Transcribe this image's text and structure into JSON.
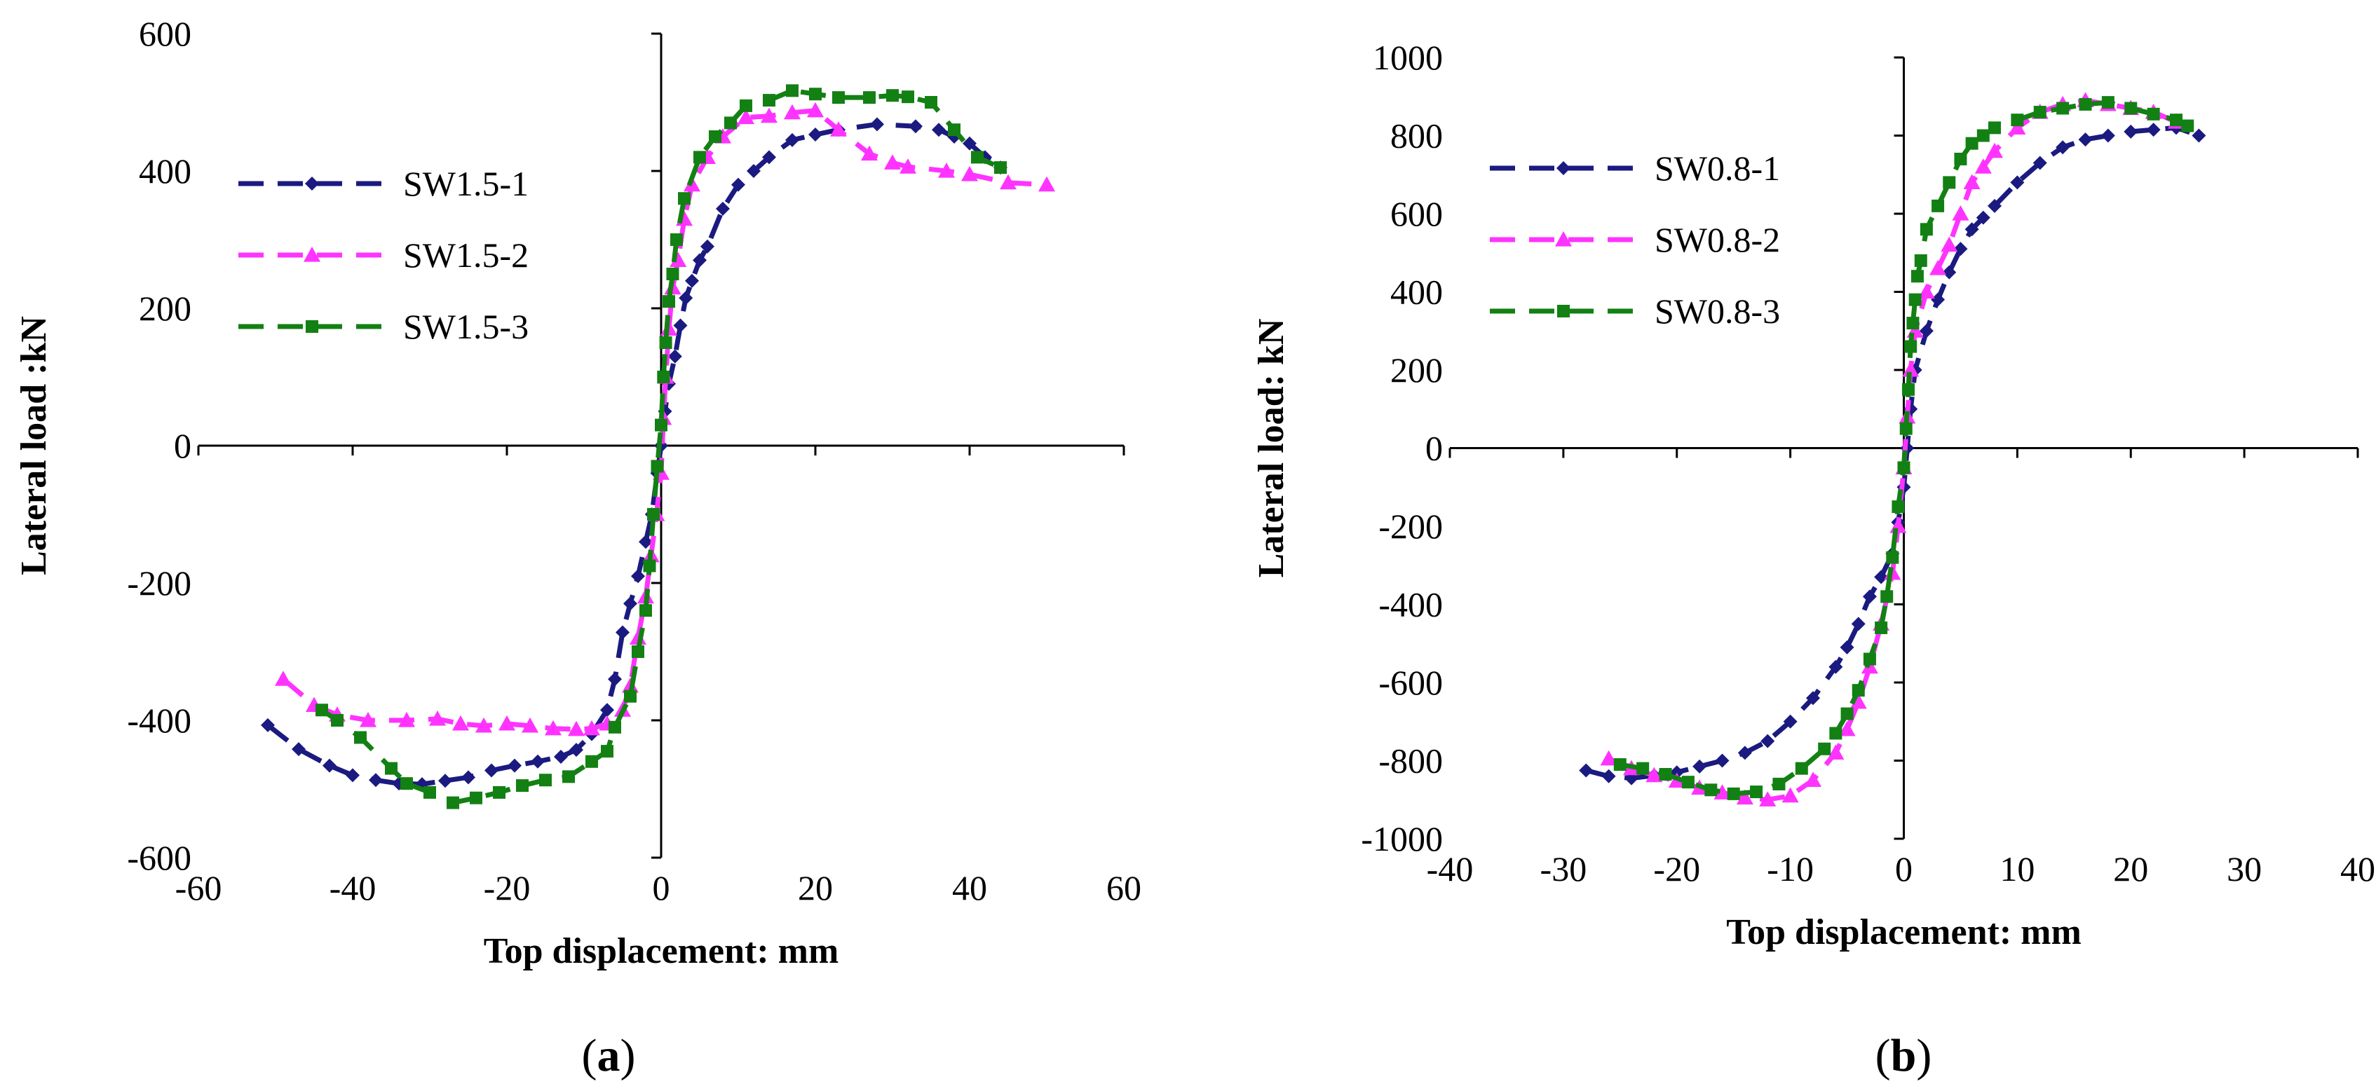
{
  "chart_data": [
    {
      "type": "line",
      "panel_label": "a",
      "xlabel": "Top displacement: mm",
      "ylabel": "Lateral load :kN",
      "xlim": [
        -60,
        60
      ],
      "ylim": [
        -600,
        600
      ],
      "xticks": [
        -60,
        -40,
        -20,
        0,
        20,
        40,
        60
      ],
      "yticks": [
        -600,
        -400,
        -200,
        0,
        200,
        400,
        600
      ],
      "grid": false,
      "legend_position": "left",
      "series": [
        {
          "name": "SW1.5-1",
          "color": "#1a1a80",
          "marker": "diamond",
          "points": [
            [
              -51,
              -407
            ],
            [
              -47,
              -442
            ],
            [
              -43,
              -466
            ],
            [
              -40,
              -480
            ],
            [
              -37,
              -487
            ],
            [
              -34,
              -492
            ],
            [
              -31,
              -493
            ],
            [
              -28,
              -488
            ],
            [
              -25,
              -483
            ],
            [
              -22,
              -473
            ],
            [
              -19,
              -466
            ],
            [
              -16,
              -460
            ],
            [
              -13,
              -453
            ],
            [
              -11,
              -443
            ],
            [
              -9,
              -420
            ],
            [
              -7,
              -385
            ],
            [
              -6,
              -340
            ],
            [
              -5,
              -272
            ],
            [
              -4,
              -230
            ],
            [
              -3,
              -190
            ],
            [
              -2,
              -140
            ],
            [
              -1.2,
              -100
            ],
            [
              -0.5,
              -40
            ],
            [
              0,
              0
            ],
            [
              0.5,
              50
            ],
            [
              1,
              90
            ],
            [
              1.8,
              130
            ],
            [
              2.5,
              175
            ],
            [
              3.2,
              215
            ],
            [
              4,
              240
            ],
            [
              5,
              270
            ],
            [
              6,
              290
            ],
            [
              8,
              345
            ],
            [
              10,
              380
            ],
            [
              12,
              400
            ],
            [
              14,
              420
            ],
            [
              17,
              445
            ],
            [
              20,
              453
            ],
            [
              23,
              460
            ],
            [
              28,
              468
            ],
            [
              33,
              465
            ],
            [
              36,
              460
            ],
            [
              38,
              450
            ],
            [
              40,
              440
            ],
            [
              42,
              420
            ],
            [
              44,
              405
            ]
          ]
        },
        {
          "name": "SW1.5-2",
          "color": "#ff33ff",
          "marker": "triangle",
          "points": [
            [
              -49,
              -340
            ],
            [
              -45,
              -378
            ],
            [
              -42,
              -392
            ],
            [
              -38,
              -400
            ],
            [
              -33,
              -400
            ],
            [
              -29,
              -398
            ],
            [
              -26,
              -405
            ],
            [
              -23,
              -408
            ],
            [
              -20,
              -405
            ],
            [
              -17,
              -408
            ],
            [
              -14,
              -412
            ],
            [
              -11,
              -413
            ],
            [
              -9,
              -412
            ],
            [
              -7,
              -405
            ],
            [
              -5,
              -385
            ],
            [
              -4,
              -350
            ],
            [
              -3,
              -280
            ],
            [
              -2,
              -220
            ],
            [
              -1.3,
              -160
            ],
            [
              -0.6,
              -100
            ],
            [
              0,
              -40
            ],
            [
              0.3,
              40
            ],
            [
              0.6,
              100
            ],
            [
              1,
              170
            ],
            [
              1.5,
              230
            ],
            [
              2.2,
              270
            ],
            [
              3,
              330
            ],
            [
              4,
              380
            ],
            [
              6,
              420
            ],
            [
              8,
              450
            ],
            [
              11,
              478
            ],
            [
              14,
              480
            ],
            [
              17,
              485
            ],
            [
              20,
              488
            ],
            [
              23,
              460
            ],
            [
              27,
              425
            ],
            [
              30,
              412
            ],
            [
              32,
              406
            ],
            [
              37,
              400
            ],
            [
              40,
              395
            ],
            [
              45,
              383
            ],
            [
              50,
              380
            ]
          ]
        },
        {
          "name": "SW1.5-3",
          "color": "#138013",
          "marker": "square",
          "points": [
            [
              -44,
              -385
            ],
            [
              -42,
              -400
            ],
            [
              -39,
              -425
            ],
            [
              -35,
              -470
            ],
            [
              -33,
              -492
            ],
            [
              -30,
              -505
            ],
            [
              -27,
              -520
            ],
            [
              -24,
              -513
            ],
            [
              -21,
              -505
            ],
            [
              -18,
              -495
            ],
            [
              -15,
              -487
            ],
            [
              -12,
              -482
            ],
            [
              -9,
              -460
            ],
            [
              -7,
              -445
            ],
            [
              -6,
              -410
            ],
            [
              -4,
              -365
            ],
            [
              -3,
              -300
            ],
            [
              -2,
              -240
            ],
            [
              -1.5,
              -175
            ],
            [
              -1,
              -100
            ],
            [
              -0.5,
              -30
            ],
            [
              0,
              30
            ],
            [
              0.3,
              100
            ],
            [
              0.6,
              150
            ],
            [
              1,
              210
            ],
            [
              1.5,
              250
            ],
            [
              2,
              300
            ],
            [
              3,
              360
            ],
            [
              5,
              420
            ],
            [
              7,
              450
            ],
            [
              9,
              470
            ],
            [
              11,
              495
            ],
            [
              14,
              503
            ],
            [
              17,
              517
            ],
            [
              20,
              512
            ],
            [
              23,
              507
            ],
            [
              27,
              507
            ],
            [
              30,
              510
            ],
            [
              32,
              508
            ],
            [
              35,
              500
            ],
            [
              38,
              460
            ],
            [
              41,
              420
            ],
            [
              44,
              405
            ]
          ]
        }
      ]
    },
    {
      "type": "line",
      "panel_label": "b",
      "xlabel": "Top displacement: mm",
      "ylabel": "Lateral load: kN",
      "xlim": [
        -40,
        40
      ],
      "ylim": [
        -1000,
        1000
      ],
      "xticks": [
        -40,
        -30,
        -20,
        -10,
        0,
        10,
        20,
        30,
        40
      ],
      "yticks": [
        -1000,
        -800,
        -600,
        -400,
        -200,
        0,
        200,
        400,
        600,
        800,
        1000
      ],
      "grid": false,
      "legend_position": "left",
      "series": [
        {
          "name": "SW0.8-1",
          "color": "#1a1a80",
          "marker": "diamond",
          "points": [
            [
              -28,
              -825
            ],
            [
              -26,
              -840
            ],
            [
              -24,
              -845
            ],
            [
              -22,
              -838
            ],
            [
              -20,
              -830
            ],
            [
              -18,
              -815
            ],
            [
              -16,
              -800
            ],
            [
              -14,
              -780
            ],
            [
              -12,
              -750
            ],
            [
              -10,
              -700
            ],
            [
              -8,
              -640
            ],
            [
              -6,
              -560
            ],
            [
              -5,
              -510
            ],
            [
              -4,
              -450
            ],
            [
              -3,
              -380
            ],
            [
              -2,
              -330
            ],
            [
              -1,
              -270
            ],
            [
              -0.5,
              -190
            ],
            [
              0,
              -100
            ],
            [
              0.3,
              0
            ],
            [
              0.6,
              100
            ],
            [
              1,
              200
            ],
            [
              2,
              300
            ],
            [
              3,
              380
            ],
            [
              4,
              450
            ],
            [
              5,
              510
            ],
            [
              6,
              560
            ],
            [
              7,
              590
            ],
            [
              8,
              620
            ],
            [
              10,
              680
            ],
            [
              12,
              730
            ],
            [
              14,
              770
            ],
            [
              16,
              790
            ],
            [
              18,
              800
            ],
            [
              20,
              810
            ],
            [
              22,
              815
            ],
            [
              24,
              820
            ],
            [
              26,
              800
            ]
          ]
        },
        {
          "name": "SW0.8-2",
          "color": "#ff33ff",
          "marker": "triangle",
          "points": [
            [
              -26,
              -795
            ],
            [
              -24,
              -820
            ],
            [
              -22,
              -838
            ],
            [
              -20,
              -852
            ],
            [
              -18,
              -870
            ],
            [
              -16,
              -882
            ],
            [
              -14,
              -895
            ],
            [
              -12,
              -900
            ],
            [
              -10,
              -890
            ],
            [
              -8,
              -850
            ],
            [
              -6,
              -780
            ],
            [
              -5,
              -720
            ],
            [
              -4,
              -650
            ],
            [
              -3,
              -560
            ],
            [
              -2,
              -450
            ],
            [
              -1,
              -320
            ],
            [
              -0.5,
              -200
            ],
            [
              0,
              -50
            ],
            [
              0.3,
              80
            ],
            [
              0.6,
              200
            ],
            [
              1,
              300
            ],
            [
              2,
              400
            ],
            [
              3,
              460
            ],
            [
              4,
              520
            ],
            [
              5,
              600
            ],
            [
              6,
              680
            ],
            [
              7,
              720
            ],
            [
              8,
              760
            ],
            [
              10,
              820
            ],
            [
              12,
              860
            ],
            [
              14,
              880
            ],
            [
              16,
              890
            ],
            [
              18,
              880
            ],
            [
              20,
              870
            ],
            [
              22,
              860
            ],
            [
              24,
              835
            ]
          ]
        },
        {
          "name": "SW0.8-3",
          "color": "#138013",
          "marker": "square",
          "points": [
            [
              -25,
              -810
            ],
            [
              -23,
              -820
            ],
            [
              -21,
              -835
            ],
            [
              -19,
              -855
            ],
            [
              -17,
              -875
            ],
            [
              -15,
              -885
            ],
            [
              -13,
              -880
            ],
            [
              -11,
              -860
            ],
            [
              -9,
              -820
            ],
            [
              -7,
              -770
            ],
            [
              -6,
              -730
            ],
            [
              -5,
              -680
            ],
            [
              -4,
              -620
            ],
            [
              -3,
              -540
            ],
            [
              -2,
              -460
            ],
            [
              -1.5,
              -380
            ],
            [
              -1,
              -280
            ],
            [
              -0.5,
              -150
            ],
            [
              0,
              -50
            ],
            [
              0.2,
              50
            ],
            [
              0.4,
              150
            ],
            [
              0.6,
              260
            ],
            [
              0.8,
              320
            ],
            [
              1,
              380
            ],
            [
              1.2,
              440
            ],
            [
              1.5,
              480
            ],
            [
              2,
              560
            ],
            [
              3,
              620
            ],
            [
              4,
              680
            ],
            [
              5,
              740
            ],
            [
              6,
              780
            ],
            [
              7,
              800
            ],
            [
              8,
              820
            ],
            [
              10,
              840
            ],
            [
              12,
              860
            ],
            [
              14,
              870
            ],
            [
              16,
              880
            ],
            [
              18,
              885
            ],
            [
              20,
              870
            ],
            [
              22,
              855
            ],
            [
              24,
              840
            ],
            [
              25,
              825
            ]
          ]
        }
      ]
    }
  ]
}
